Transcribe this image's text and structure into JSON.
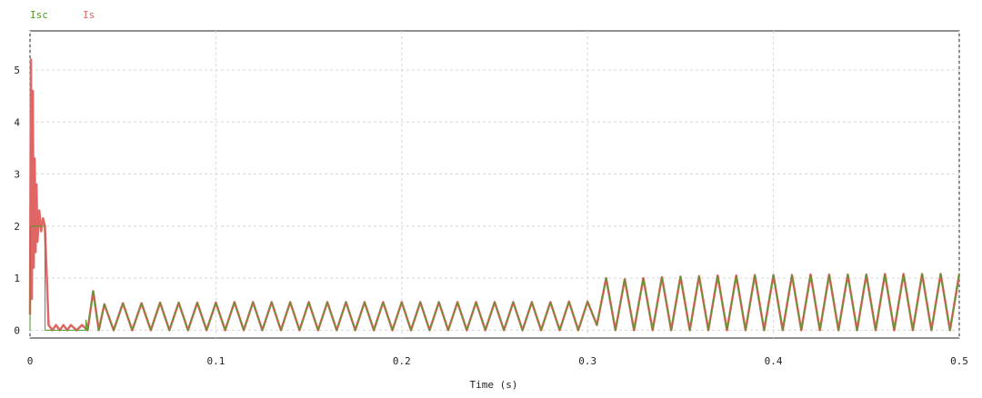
{
  "chart_data": {
    "type": "line",
    "xlabel": "Time (s)",
    "ylabel": "",
    "xlim": [
      0,
      0.5
    ],
    "ylim": [
      -0.15,
      5.75
    ],
    "x_ticks": [
      0,
      0.1,
      0.2,
      0.3,
      0.4,
      0.5
    ],
    "x_tick_labels": [
      "0",
      "0.1",
      "0.2",
      "0.3",
      "0.4",
      "0.5"
    ],
    "y_ticks": [
      0,
      1,
      2,
      3,
      4,
      5
    ],
    "y_tick_labels": [
      "0",
      "1",
      "2",
      "3",
      "4",
      "5"
    ],
    "grid": true,
    "legend_position": "top-left",
    "series": [
      {
        "name": "Isc",
        "color": "#4f9a22",
        "x": [
          0,
          0.0003,
          0.0008,
          0.008,
          0.0081,
          0.0082,
          0.03,
          0.0301,
          0.031,
          0.034,
          0.037,
          0.04,
          0.045,
          0.05,
          0.055,
          0.06,
          0.065,
          0.07,
          0.075,
          0.08,
          0.085,
          0.09,
          0.095,
          0.1,
          0.105,
          0.11,
          0.115,
          0.12,
          0.125,
          0.13,
          0.135,
          0.14,
          0.145,
          0.15,
          0.155,
          0.16,
          0.165,
          0.17,
          0.175,
          0.18,
          0.185,
          0.19,
          0.195,
          0.2,
          0.205,
          0.21,
          0.215,
          0.22,
          0.225,
          0.23,
          0.235,
          0.24,
          0.245,
          0.25,
          0.255,
          0.26,
          0.265,
          0.27,
          0.275,
          0.28,
          0.285,
          0.29,
          0.295,
          0.3,
          0.305,
          0.31,
          0.315,
          0.32,
          0.325,
          0.33,
          0.335,
          0.34,
          0.345,
          0.35,
          0.355,
          0.36,
          0.365,
          0.37,
          0.375,
          0.38,
          0.385,
          0.39,
          0.395,
          0.4,
          0.405,
          0.41,
          0.415,
          0.42,
          0.425,
          0.43,
          0.435,
          0.44,
          0.445,
          0.45,
          0.455,
          0.46,
          0.465,
          0.47,
          0.475,
          0.48,
          0.485,
          0.49,
          0.495,
          0.5
        ],
        "y": [
          0,
          2,
          2,
          2,
          0,
          0,
          0,
          0.2,
          0,
          0.75,
          0,
          0.5,
          0,
          0.52,
          0,
          0.52,
          0,
          0.53,
          0,
          0.53,
          0,
          0.53,
          0,
          0.53,
          0,
          0.54,
          0,
          0.54,
          0,
          0.54,
          0,
          0.54,
          0,
          0.54,
          0,
          0.54,
          0,
          0.54,
          0,
          0.54,
          0,
          0.54,
          0,
          0.54,
          0,
          0.54,
          0,
          0.54,
          0,
          0.54,
          0,
          0.54,
          0,
          0.54,
          0,
          0.54,
          0,
          0.54,
          0,
          0.54,
          0,
          0.55,
          0,
          0.55,
          0.1,
          1.0,
          0,
          0.98,
          0,
          1.0,
          0,
          1.02,
          0,
          1.03,
          0,
          1.04,
          0,
          1.05,
          0,
          1.05,
          0,
          1.06,
          0,
          1.06,
          0,
          1.06,
          0,
          1.07,
          0,
          1.07,
          0,
          1.07,
          0,
          1.07,
          0,
          1.08,
          0,
          1.08,
          0,
          1.08,
          0,
          1.08,
          0,
          1.08
        ]
      },
      {
        "name": "Is",
        "color": "#e06666",
        "x": [
          0,
          0.0005,
          0.001,
          0.0015,
          0.002,
          0.0025,
          0.003,
          0.0035,
          0.004,
          0.005,
          0.006,
          0.007,
          0.008,
          0.01,
          0.012,
          0.014,
          0.016,
          0.018,
          0.02,
          0.022,
          0.025,
          0.028,
          0.031,
          0.034,
          0.037,
          0.04,
          0.045,
          0.05,
          0.055,
          0.06,
          0.065,
          0.07,
          0.075,
          0.08,
          0.085,
          0.09,
          0.095,
          0.1,
          0.105,
          0.11,
          0.115,
          0.12,
          0.125,
          0.13,
          0.135,
          0.14,
          0.145,
          0.15,
          0.155,
          0.16,
          0.165,
          0.17,
          0.175,
          0.18,
          0.185,
          0.19,
          0.195,
          0.2,
          0.205,
          0.21,
          0.215,
          0.22,
          0.225,
          0.23,
          0.235,
          0.24,
          0.245,
          0.25,
          0.255,
          0.26,
          0.265,
          0.27,
          0.275,
          0.28,
          0.285,
          0.29,
          0.295,
          0.3,
          0.305,
          0.31,
          0.315,
          0.32,
          0.325,
          0.33,
          0.335,
          0.34,
          0.345,
          0.35,
          0.355,
          0.36,
          0.365,
          0.37,
          0.375,
          0.38,
          0.385,
          0.39,
          0.395,
          0.4,
          0.405,
          0.41,
          0.415,
          0.42,
          0.425,
          0.43,
          0.435,
          0.44,
          0.445,
          0.45,
          0.455,
          0.46,
          0.465,
          0.47,
          0.475,
          0.48,
          0.485,
          0.49,
          0.495,
          0.5
        ],
        "y": [
          0.3,
          5.2,
          0.6,
          4.6,
          1.2,
          3.3,
          1.5,
          2.8,
          1.7,
          2.3,
          1.9,
          2.15,
          2.0,
          0.1,
          0,
          0.1,
          0,
          0.1,
          0,
          0.1,
          0,
          0.1,
          0,
          0.75,
          0,
          0.5,
          0,
          0.52,
          0,
          0.52,
          0,
          0.53,
          0,
          0.53,
          0,
          0.53,
          0,
          0.53,
          0,
          0.54,
          0,
          0.54,
          0,
          0.54,
          0,
          0.54,
          0,
          0.54,
          0,
          0.54,
          0,
          0.54,
          0,
          0.54,
          0,
          0.54,
          0,
          0.54,
          0,
          0.54,
          0,
          0.54,
          0,
          0.54,
          0,
          0.54,
          0,
          0.54,
          0,
          0.54,
          0,
          0.54,
          0,
          0.54,
          0,
          0.55,
          0,
          0.55,
          0.1,
          1.0,
          0,
          0.98,
          0,
          1.0,
          0,
          1.02,
          0,
          1.03,
          0,
          1.04,
          0,
          1.05,
          0,
          1.05,
          0,
          1.06,
          0,
          1.06,
          0,
          1.06,
          0,
          1.07,
          0,
          1.07,
          0,
          1.07,
          0,
          1.07,
          0,
          1.08,
          0,
          1.08,
          0,
          1.08,
          0,
          1.08,
          0,
          1.08
        ]
      }
    ]
  }
}
